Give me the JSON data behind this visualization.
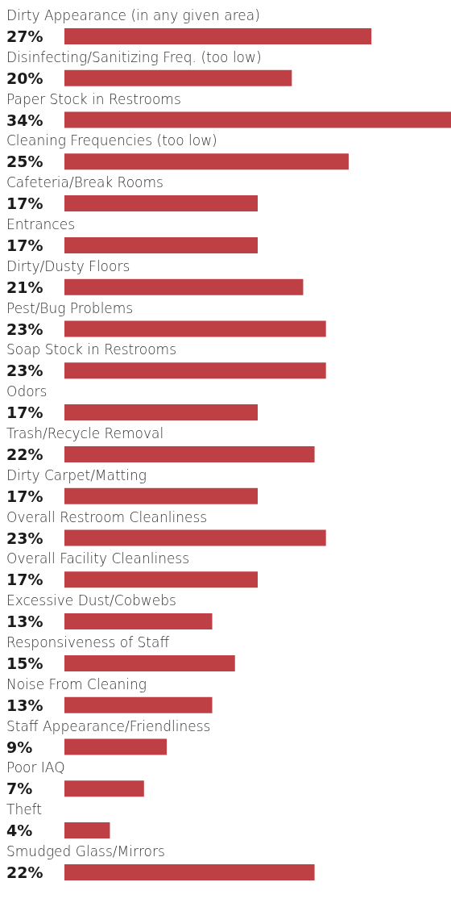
{
  "chart_data": {
    "type": "bar",
    "orientation": "horizontal",
    "color": "#be4044",
    "data_labels": true,
    "value_labels": [
      "27%",
      "20%",
      "34%",
      "25%",
      "17%",
      "17%",
      "21%",
      "23%",
      "23%",
      "17%",
      "22%",
      "17%",
      "23%",
      "17%",
      "13%",
      "15%",
      "13%",
      "9%",
      "7%",
      "4%",
      "22%"
    ],
    "categories": [
      "Dirty Appearance (in any given area)",
      "Disinfecting/Sanitizing Freq. (too low)",
      "Paper Stock in Restrooms",
      "Cleaning Frequencies (too low)",
      "Cafeteria/Break Rooms",
      "Entrances",
      "Dirty/Dusty Floors",
      "Pest/Bug Problems",
      "Soap Stock in Restrooms",
      "Odors",
      "Trash/Recycle Removal",
      "Dirty Carpet/Matting",
      "Overall Restroom Cleanliness",
      "Overall Facility Cleanliness",
      "Excessive Dust/Cobwebs",
      "Responsiveness of Staff",
      "Noise From Cleaning",
      "Staff Appearance/Friendliness",
      "Poor IAQ",
      "Theft",
      "Smudged Glass/Mirrors"
    ],
    "values": [
      27,
      20,
      34,
      25,
      17,
      17,
      21,
      23,
      23,
      17,
      22,
      17,
      23,
      17,
      13,
      15,
      13,
      9,
      7,
      4,
      22
    ]
  }
}
